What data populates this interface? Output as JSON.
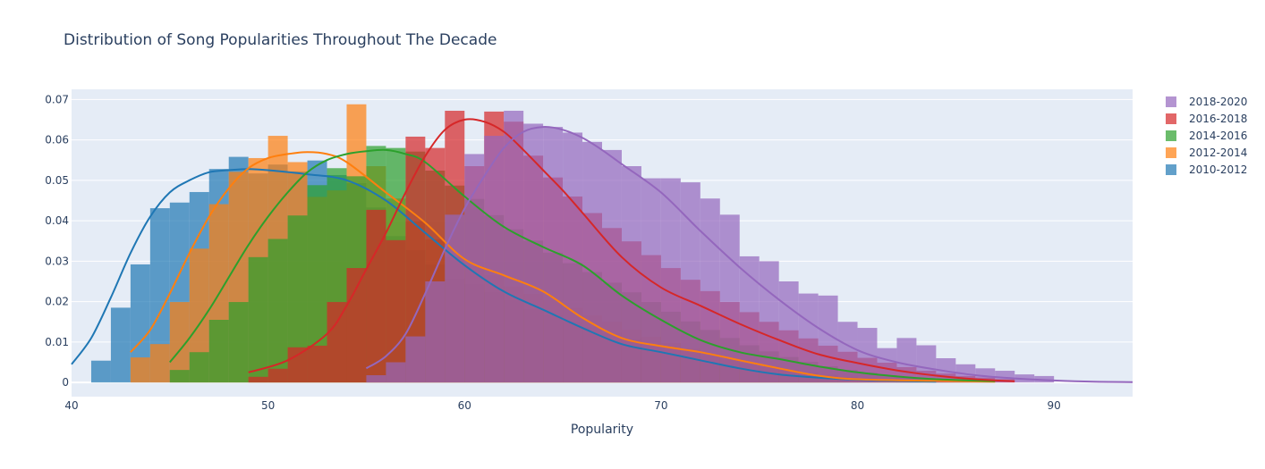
{
  "chart_data": {
    "type": "histogram",
    "title": "Distribution of Song Popularities Throughout The Decade",
    "xlabel": "Popularity",
    "ylabel": "",
    "xlim": [
      40,
      94
    ],
    "ylim": [
      -0.0035,
      0.0725
    ],
    "x_ticks": [
      40,
      50,
      60,
      70,
      80,
      90
    ],
    "y_ticks": [
      0,
      0.01,
      0.02,
      0.03,
      0.04,
      0.05,
      0.06,
      0.07
    ],
    "y_tick_labels": [
      "0",
      "0.01",
      "0.02",
      "0.03",
      "0.04",
      "0.05",
      "0.06",
      "0.07"
    ],
    "grid": true,
    "legend_position": "top-right",
    "bin_width": 1,
    "series": [
      {
        "name": "2010-2012",
        "color": "#1f77b4",
        "bins_start": 41,
        "values": [
          0.0054,
          0.0185,
          0.0292,
          0.0431,
          0.0445,
          0.0471,
          0.0528,
          0.0558,
          0.0517,
          0.0539,
          0.0522,
          0.0549,
          0.0513,
          0.0493,
          0.0433,
          0.0362,
          0.0327,
          0.0291,
          0.0258,
          0.0243,
          0.0223,
          0.0204,
          0.0182,
          0.0166,
          0.0151,
          0.0137,
          0.0123,
          0.0109,
          0.0096,
          0.0087,
          0.0078,
          0.0067,
          0.0057,
          0.0047,
          0.0039,
          0.0031,
          0.0025,
          0.0019,
          0.0014,
          0.0011,
          0.0008,
          0.0006,
          0.0004
        ],
        "kde_x": [
          40,
          41,
          42,
          43,
          44,
          45,
          46,
          47,
          48,
          49,
          50,
          52,
          54,
          56,
          58,
          60,
          62,
          64,
          66,
          68,
          70,
          72,
          74,
          76,
          78,
          80,
          82,
          84
        ],
        "kde_y": [
          0.0045,
          0.011,
          0.021,
          0.032,
          0.041,
          0.047,
          0.05,
          0.052,
          0.0525,
          0.0528,
          0.0525,
          0.0515,
          0.05,
          0.045,
          0.037,
          0.029,
          0.0225,
          0.018,
          0.0135,
          0.0095,
          0.0075,
          0.0055,
          0.0035,
          0.002,
          0.0012,
          0.0007,
          0.0004,
          0.0002
        ]
      },
      {
        "name": "2012-2014",
        "color": "#ff7f0e",
        "bins_start": 43,
        "values": [
          0.0062,
          0.0095,
          0.0199,
          0.0331,
          0.0441,
          0.0521,
          0.0555,
          0.061,
          0.0545,
          0.0459,
          0.0475,
          0.0688,
          0.0535,
          0.0455,
          0.0399,
          0.0354,
          0.0311,
          0.0287,
          0.0265,
          0.0238,
          0.0219,
          0.0204,
          0.0185,
          0.0166,
          0.015,
          0.0131,
          0.0113,
          0.0098,
          0.0084,
          0.0071,
          0.0059,
          0.0049,
          0.0039,
          0.0031,
          0.0024,
          0.0018,
          0.0013,
          0.0009,
          0.0006,
          0.0004,
          0.0003,
          0.0002,
          0.0001,
          0.0001
        ],
        "kde_x": [
          43,
          44,
          45,
          46,
          47,
          48,
          49,
          50,
          51,
          52,
          53,
          54,
          56,
          58,
          60,
          62,
          64,
          66,
          68,
          70,
          72,
          74,
          76,
          78,
          80,
          84,
          87
        ],
        "kde_y": [
          0.0075,
          0.013,
          0.022,
          0.032,
          0.041,
          0.048,
          0.053,
          0.0555,
          0.0565,
          0.057,
          0.0565,
          0.0545,
          0.047,
          0.0395,
          0.0305,
          0.0265,
          0.0225,
          0.016,
          0.011,
          0.009,
          0.0075,
          0.0055,
          0.0035,
          0.0017,
          0.0008,
          0.0004,
          0.0002
        ]
      },
      {
        "name": "2014-2016",
        "color": "#2ca02c",
        "bins_start": 45,
        "values": [
          0.0031,
          0.0075,
          0.0155,
          0.0199,
          0.031,
          0.0355,
          0.0413,
          0.0488,
          0.053,
          0.051,
          0.0585,
          0.058,
          0.0571,
          0.0524,
          0.0487,
          0.0454,
          0.0414,
          0.0379,
          0.0351,
          0.0321,
          0.0295,
          0.0273,
          0.0247,
          0.0223,
          0.0199,
          0.0175,
          0.0151,
          0.013,
          0.011,
          0.0092,
          0.0077,
          0.0063,
          0.0051,
          0.004,
          0.0031,
          0.0024,
          0.0018,
          0.0013,
          0.0009,
          0.0006,
          0.0004,
          0.0003
        ],
        "kde_x": [
          45,
          46,
          47,
          48,
          49,
          50,
          51,
          52,
          53,
          54,
          55,
          56,
          57,
          58,
          60,
          62,
          64,
          66,
          68,
          70,
          72,
          74,
          76,
          78,
          80,
          82,
          84,
          87
        ],
        "kde_y": [
          0.005,
          0.011,
          0.018,
          0.026,
          0.034,
          0.041,
          0.047,
          0.052,
          0.055,
          0.0565,
          0.0572,
          0.0575,
          0.0565,
          0.0545,
          0.046,
          0.0385,
          0.0335,
          0.029,
          0.0215,
          0.0155,
          0.0105,
          0.0075,
          0.0058,
          0.004,
          0.0025,
          0.0015,
          0.0008,
          0.0003
        ]
      },
      {
        "name": "2016-2018",
        "color": "#d62728",
        "bins_start": 49,
        "values": [
          0.0014,
          0.0034,
          0.0087,
          0.0091,
          0.0199,
          0.0283,
          0.0427,
          0.0352,
          0.0608,
          0.058,
          0.0672,
          0.0535,
          0.067,
          0.0645,
          0.0561,
          0.0507,
          0.046,
          0.0419,
          0.0382,
          0.0349,
          0.0315,
          0.0283,
          0.0254,
          0.0226,
          0.0199,
          0.0174,
          0.015,
          0.0129,
          0.0109,
          0.0091,
          0.0076,
          0.0061,
          0.0049,
          0.0038,
          0.0029,
          0.0022,
          0.0016,
          0.0012,
          0.0008
        ],
        "kde_x": [
          49,
          51,
          53,
          54,
          55,
          56,
          57,
          58,
          59,
          60,
          61,
          62,
          63,
          64,
          65,
          66,
          68,
          70,
          72,
          74,
          76,
          78,
          80,
          82,
          84,
          86,
          88
        ],
        "kde_y": [
          0.0025,
          0.0055,
          0.012,
          0.019,
          0.028,
          0.037,
          0.047,
          0.056,
          0.0625,
          0.065,
          0.0645,
          0.062,
          0.0575,
          0.0525,
          0.0475,
          0.042,
          0.031,
          0.0235,
          0.019,
          0.0145,
          0.0105,
          0.007,
          0.0048,
          0.003,
          0.0017,
          0.0008,
          0.0003
        ]
      },
      {
        "name": "2018-2020",
        "color": "#9467bd",
        "bins_start": 55,
        "values": [
          0.0018,
          0.005,
          0.0114,
          0.025,
          0.0415,
          0.0565,
          0.061,
          0.0672,
          0.064,
          0.0632,
          0.0618,
          0.0595,
          0.0575,
          0.0535,
          0.0505,
          0.0505,
          0.0495,
          0.0455,
          0.0415,
          0.0312,
          0.03,
          0.025,
          0.022,
          0.0215,
          0.015,
          0.0135,
          0.0085,
          0.011,
          0.0092,
          0.006,
          0.0045,
          0.0035,
          0.0029,
          0.002,
          0.0016
        ],
        "kde_x": [
          55,
          56,
          57,
          58,
          59,
          60,
          61,
          62,
          63,
          64,
          65,
          66,
          67,
          68,
          70,
          72,
          74,
          76,
          78,
          80,
          82,
          84,
          86,
          88,
          90,
          92,
          94
        ],
        "kde_y": [
          0.0035,
          0.0065,
          0.012,
          0.022,
          0.033,
          0.043,
          0.051,
          0.058,
          0.062,
          0.0632,
          0.0625,
          0.0605,
          0.0575,
          0.054,
          0.047,
          0.0375,
          0.0285,
          0.0205,
          0.0135,
          0.008,
          0.005,
          0.0032,
          0.0018,
          0.001,
          0.0005,
          0.0002,
          0.0001
        ]
      }
    ]
  }
}
